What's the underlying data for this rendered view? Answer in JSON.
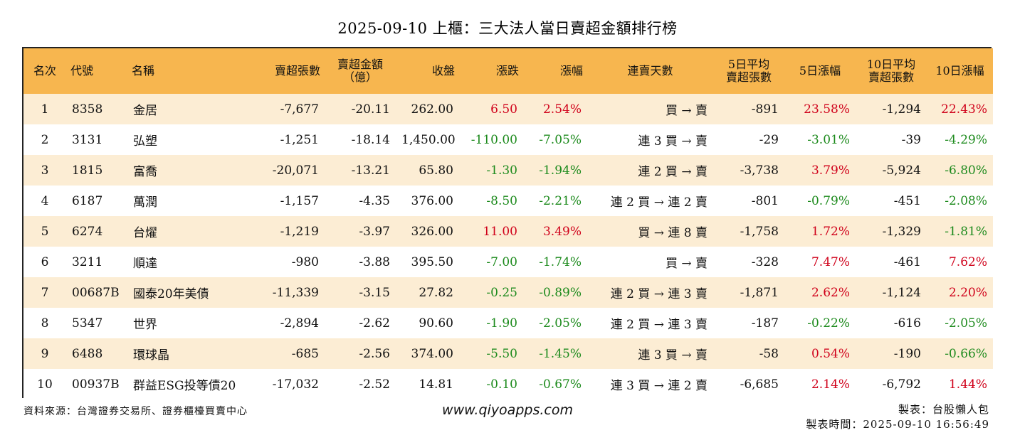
{
  "title": "2025-09-10 上櫃：三大法人當日賣超金額排行榜",
  "columns": {
    "rank": "名次",
    "code": "代號",
    "name": "名稱",
    "sell_shares": "賣超張數",
    "sell_amount_1": "賣超金額",
    "sell_amount_2": "（億）",
    "close": "收盤",
    "change": "漲跌",
    "change_pct": "漲幅",
    "streak": "連賣天數",
    "avg5_1": "5日平均",
    "avg5_2": "賣超張數",
    "pct5": "5日漲幅",
    "avg10_1": "10日平均",
    "avg10_2": "賣超張數",
    "pct10": "10日漲幅"
  },
  "rows": [
    {
      "rank": "1",
      "code": "8358",
      "name": "金居",
      "sell_shares": "-7,677",
      "sell_amount": "-20.11",
      "close": "262.00",
      "change": "6.50",
      "change_pct": "2.54%",
      "streak": "買 → 賣",
      "avg5": "-891",
      "pct5": "23.58%",
      "avg10": "-1,294",
      "pct10": "22.43%"
    },
    {
      "rank": "2",
      "code": "3131",
      "name": "弘塑",
      "sell_shares": "-1,251",
      "sell_amount": "-18.14",
      "close": "1,450.00",
      "change": "-110.00",
      "change_pct": "-7.05%",
      "streak": "連 3 買 → 賣",
      "avg5": "-29",
      "pct5": "-3.01%",
      "avg10": "-39",
      "pct10": "-4.29%"
    },
    {
      "rank": "3",
      "code": "1815",
      "name": "富喬",
      "sell_shares": "-20,071",
      "sell_amount": "-13.21",
      "close": "65.80",
      "change": "-1.30",
      "change_pct": "-1.94%",
      "streak": "連 2 買 → 賣",
      "avg5": "-3,738",
      "pct5": "3.79%",
      "avg10": "-5,924",
      "pct10": "-6.80%"
    },
    {
      "rank": "4",
      "code": "6187",
      "name": "萬潤",
      "sell_shares": "-1,157",
      "sell_amount": "-4.35",
      "close": "376.00",
      "change": "-8.50",
      "change_pct": "-2.21%",
      "streak": "連 2 買 → 連 2 賣",
      "avg5": "-801",
      "pct5": "-0.79%",
      "avg10": "-451",
      "pct10": "-2.08%"
    },
    {
      "rank": "5",
      "code": "6274",
      "name": "台燿",
      "sell_shares": "-1,219",
      "sell_amount": "-3.97",
      "close": "326.00",
      "change": "11.00",
      "change_pct": "3.49%",
      "streak": "買 → 連 8 賣",
      "avg5": "-1,758",
      "pct5": "1.72%",
      "avg10": "-1,329",
      "pct10": "-1.81%"
    },
    {
      "rank": "6",
      "code": "3211",
      "name": "順達",
      "sell_shares": "-980",
      "sell_amount": "-3.88",
      "close": "395.50",
      "change": "-7.00",
      "change_pct": "-1.74%",
      "streak": "買 → 賣",
      "avg5": "-328",
      "pct5": "7.47%",
      "avg10": "-461",
      "pct10": "7.62%"
    },
    {
      "rank": "7",
      "code": "00687B",
      "name": "國泰20年美債",
      "sell_shares": "-11,339",
      "sell_amount": "-3.15",
      "close": "27.82",
      "change": "-0.25",
      "change_pct": "-0.89%",
      "streak": "連 2 買 → 連 3 賣",
      "avg5": "-1,871",
      "pct5": "2.62%",
      "avg10": "-1,124",
      "pct10": "2.20%"
    },
    {
      "rank": "8",
      "code": "5347",
      "name": "世界",
      "sell_shares": "-2,894",
      "sell_amount": "-2.62",
      "close": "90.60",
      "change": "-1.90",
      "change_pct": "-2.05%",
      "streak": "連 2 買 → 連 3 賣",
      "avg5": "-187",
      "pct5": "-0.22%",
      "avg10": "-616",
      "pct10": "-2.05%"
    },
    {
      "rank": "9",
      "code": "6488",
      "name": "環球晶",
      "sell_shares": "-685",
      "sell_amount": "-2.56",
      "close": "374.00",
      "change": "-5.50",
      "change_pct": "-1.45%",
      "streak": "連 3 買 → 賣",
      "avg5": "-58",
      "pct5": "0.54%",
      "avg10": "-190",
      "pct10": "-0.66%"
    },
    {
      "rank": "10",
      "code": "00937B",
      "name": "群益ESG投等債20",
      "sell_shares": "-17,032",
      "sell_amount": "-2.52",
      "close": "14.81",
      "change": "-0.10",
      "change_pct": "-0.67%",
      "streak": "連 3 買 → 連 2 賣",
      "avg5": "-6,685",
      "pct5": "2.14%",
      "avg10": "-6,792",
      "pct10": "1.44%"
    }
  ],
  "footer": {
    "source": "資料來源：台灣證券交易所、證券櫃檯買賣中心",
    "website": "www.qiyoapps.com",
    "maker": "製表：台股懶人包",
    "made_time": "製表時間：2025-09-10 16:56:49"
  },
  "colors": {
    "header_bg": "#f7b64f",
    "stripe_bg": "#fcedd4",
    "up": "#d0021b",
    "down": "#1c8a1c"
  }
}
